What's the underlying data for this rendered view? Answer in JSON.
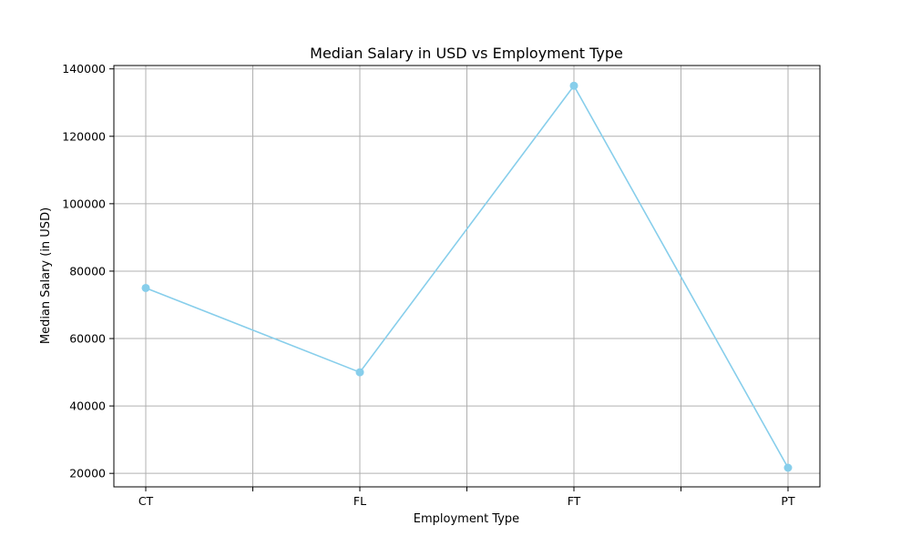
{
  "chart_data": {
    "type": "line",
    "title": "Median Salary in USD vs Employment Type",
    "xlabel": "Employment Type",
    "ylabel": "Median Salary (in USD)",
    "categories": [
      "CT",
      "FL",
      "FT",
      "PT"
    ],
    "values": [
      75000,
      50000,
      135000,
      21669
    ],
    "ylim": [
      16000,
      141000
    ],
    "yticks": [
      20000,
      40000,
      60000,
      80000,
      100000,
      120000,
      140000
    ],
    "ytick_labels": [
      "20000",
      "40000",
      "60000",
      "80000",
      "100000",
      "120000",
      "140000"
    ],
    "grid": true,
    "colors": {
      "line": "#87CEEB",
      "grid": "#b0b0b0",
      "axis": "#000000"
    }
  }
}
